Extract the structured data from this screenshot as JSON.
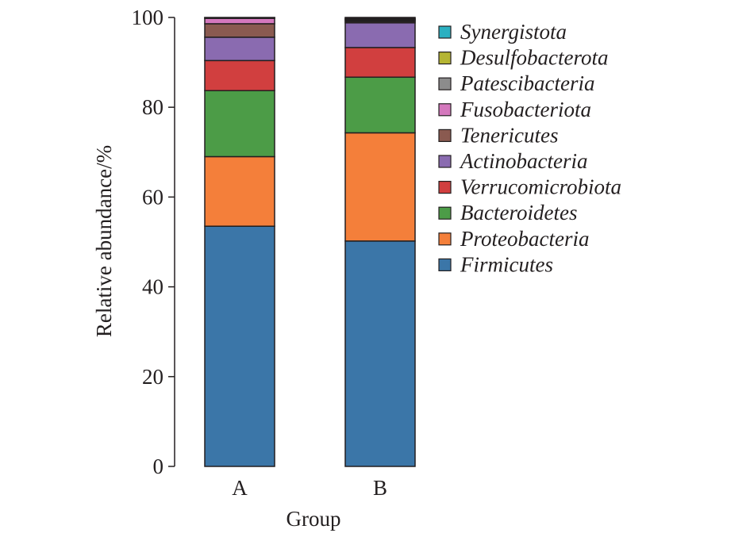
{
  "chart_data": {
    "type": "bar",
    "stacked": true,
    "categories": [
      "A",
      "B"
    ],
    "xlabel": "Group",
    "ylabel": "Relative abundance/%",
    "ylim": [
      0,
      100
    ],
    "yticks": [
      0,
      20,
      40,
      60,
      80,
      100
    ],
    "grid": false,
    "legend_position": "right",
    "series": [
      {
        "name": "Firmicutes",
        "color": "#3b76a8",
        "values": [
          53.5,
          50.2
        ]
      },
      {
        "name": "Proteobacteria",
        "color": "#f47f3a",
        "values": [
          15.5,
          24.1
        ]
      },
      {
        "name": "Bacteroidetes",
        "color": "#4c9c47",
        "values": [
          14.7,
          12.4
        ]
      },
      {
        "name": "Verrucomicrobiota",
        "color": "#d13f3f",
        "values": [
          6.7,
          6.6
        ]
      },
      {
        "name": "Actinobacteria",
        "color": "#8a6bb0",
        "values": [
          5.2,
          5.5
        ]
      },
      {
        "name": "Tenericutes",
        "color": "#8a5a50",
        "values": [
          3.0,
          0.3
        ]
      },
      {
        "name": "Fusobacteriota",
        "color": "#d478bd",
        "values": [
          1.2,
          0.2
        ]
      },
      {
        "name": "Patescibacteria",
        "color": "#8c8c8c",
        "values": [
          0.1,
          0.2
        ]
      },
      {
        "name": "Desulfobacterota",
        "color": "#b5b533",
        "values": [
          0.05,
          0.1
        ]
      },
      {
        "name": "Synergistota",
        "color": "#2bb0c1",
        "values": [
          0.05,
          0.2
        ]
      },
      {
        "name": "",
        "color": "#1a1a1a",
        "values": [
          0.0,
          0.6
        ]
      }
    ],
    "legend_order": [
      "Synergistota",
      "Desulfobacterota",
      "Patescibacteria",
      "Fusobacteriota",
      "Tenericutes",
      "Actinobacteria",
      "Verrucomicrobiota",
      "Bacteroidetes",
      "Proteobacteria",
      "Firmicutes"
    ]
  }
}
